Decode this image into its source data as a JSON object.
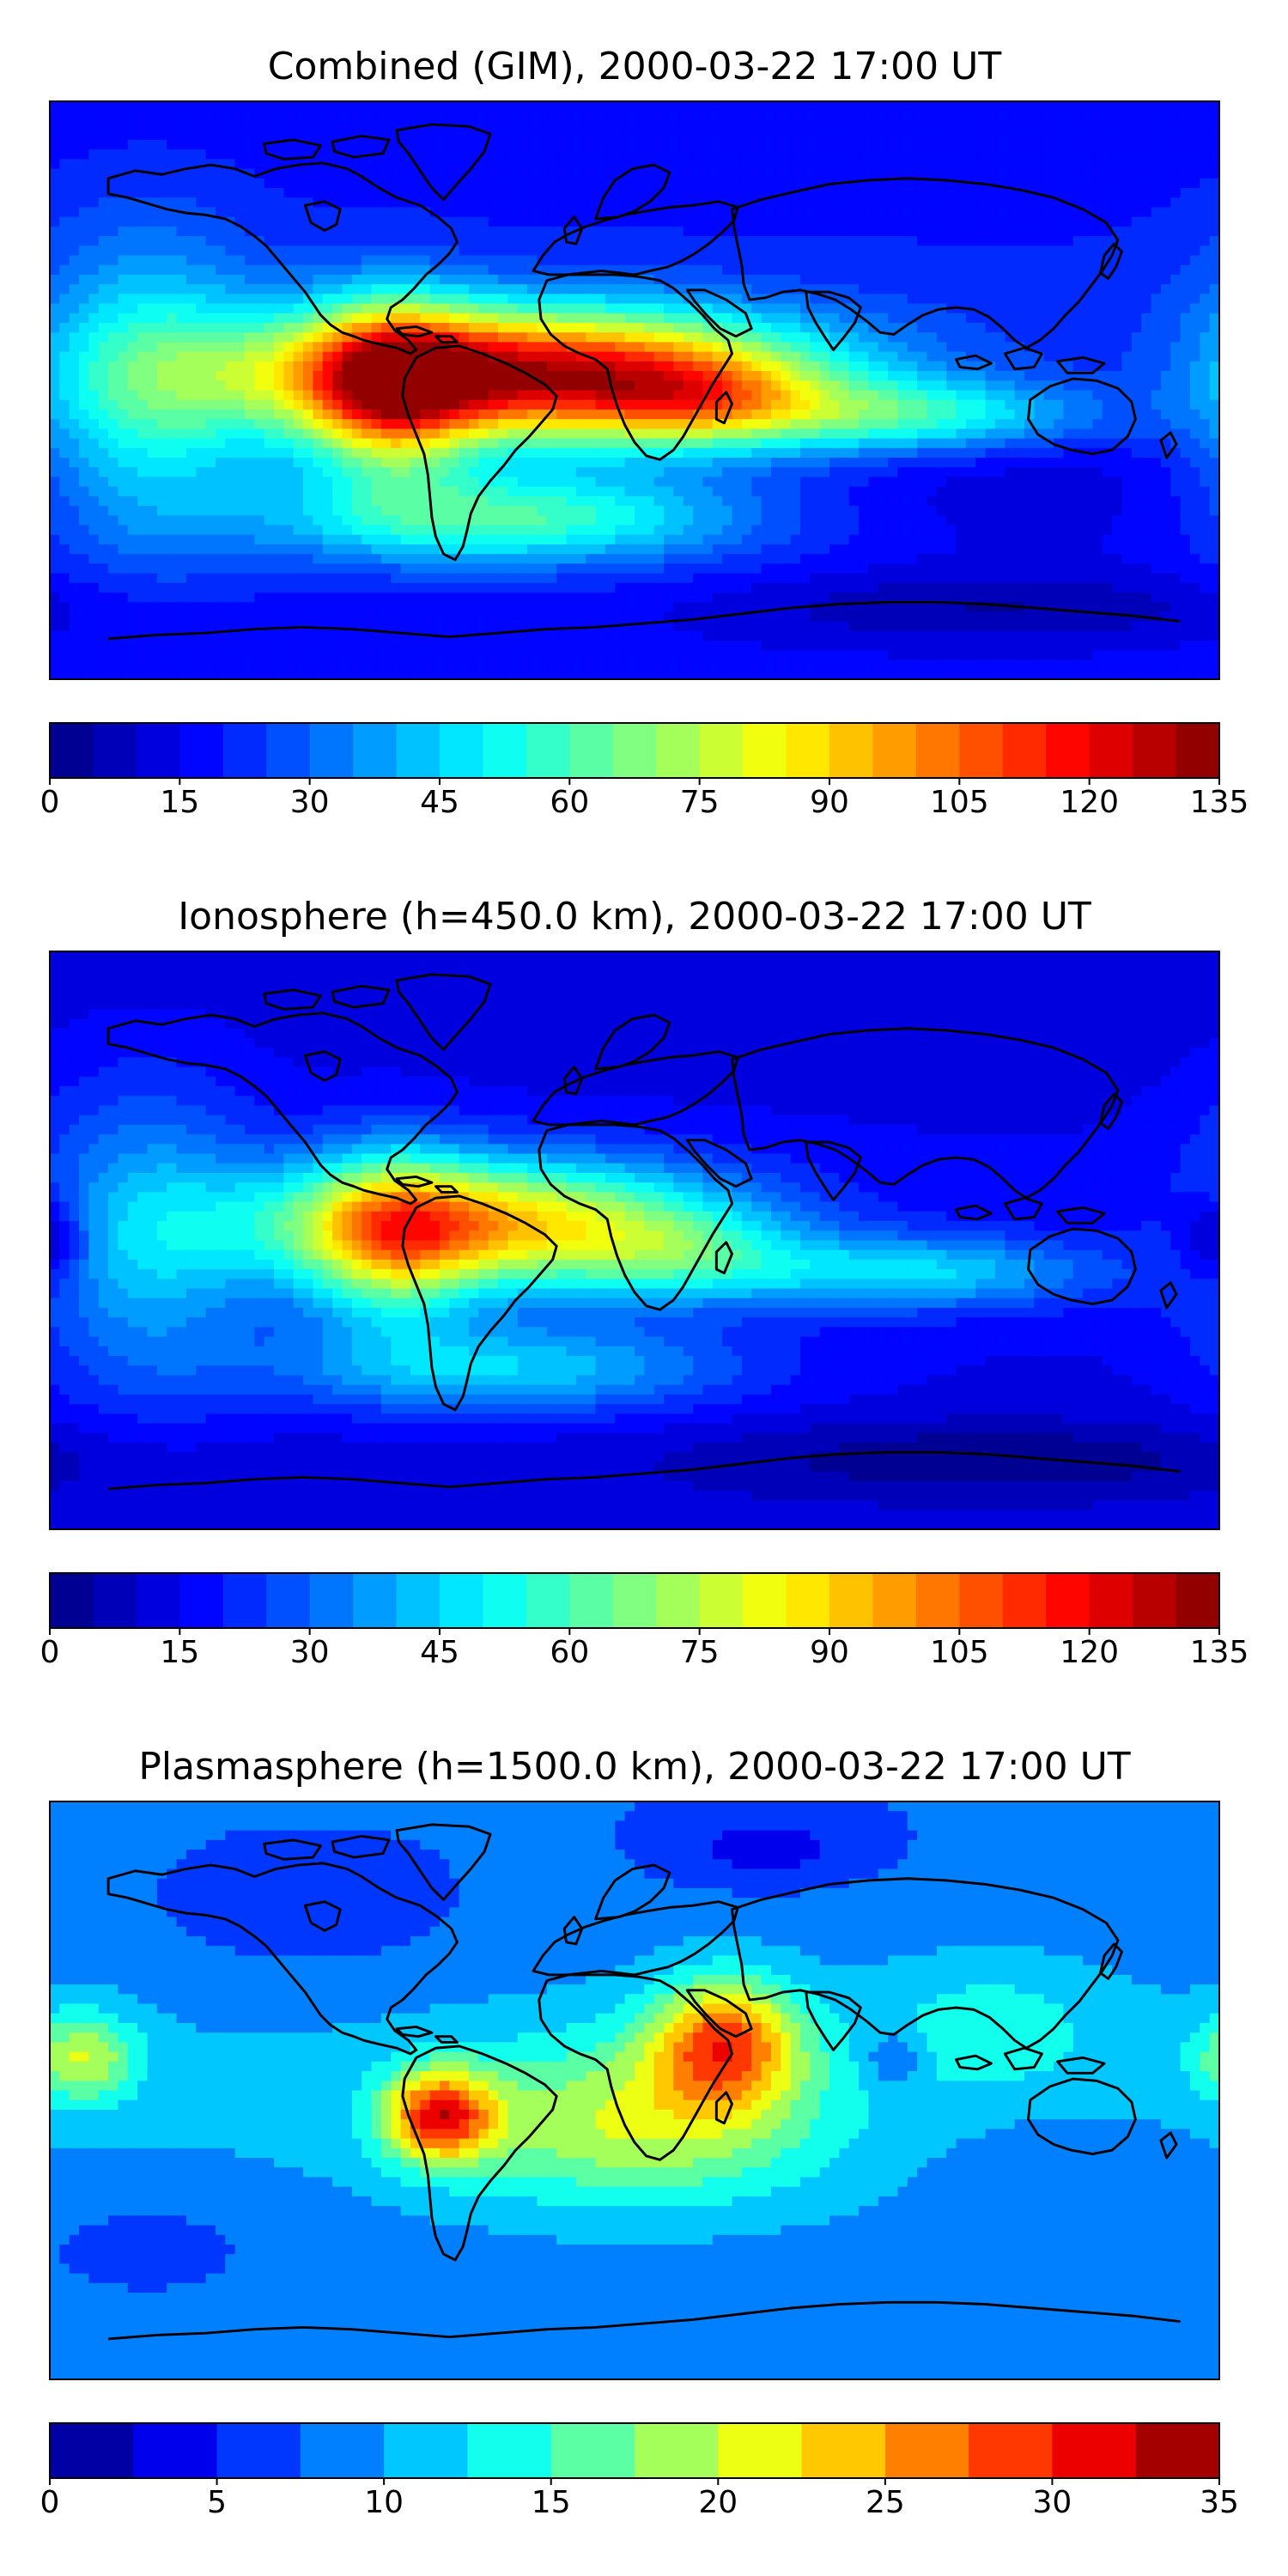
{
  "chart_data": [
    {
      "type": "heatmap",
      "title": "Combined (GIM), 2000-03-22 17:00 UT",
      "map": "world",
      "colormap": "jet",
      "colorbar": {
        "min": 0,
        "max": 135,
        "levels": 27,
        "ticks": [
          "0",
          "15",
          "30",
          "45",
          "60",
          "75",
          "90",
          "105",
          "120",
          "135"
        ]
      },
      "background_value": 20,
      "features": [
        {
          "lon": -35,
          "lat": 5,
          "amp": 105,
          "sx": 60,
          "sy": 14
        },
        {
          "lon": -75,
          "lat": 0,
          "amp": 55,
          "sx": 18,
          "sy": 20
        },
        {
          "lon": 20,
          "lat": -3,
          "amp": 30,
          "sx": 25,
          "sy": 10
        },
        {
          "lon": 85,
          "lat": -8,
          "amp": 35,
          "sx": 40,
          "sy": 8
        },
        {
          "lon": -150,
          "lat": 0,
          "amp": 30,
          "sx": 25,
          "sy": 35
        },
        {
          "lon": -40,
          "lat": -40,
          "amp": 40,
          "sx": 50,
          "sy": 10
        },
        {
          "lon": 120,
          "lat": -25,
          "amp": -10,
          "sx": 50,
          "sy": 20
        },
        {
          "lon": 110,
          "lat": -68,
          "amp": -12,
          "sx": 60,
          "sy": 8
        }
      ]
    },
    {
      "type": "heatmap",
      "title": "Ionosphere  (h=450.0 km), 2000-03-22 17:00 UT",
      "map": "world",
      "colormap": "jet",
      "colorbar": {
        "min": 0,
        "max": 135,
        "levels": 27,
        "ticks": [
          "0",
          "15",
          "30",
          "45",
          "60",
          "75",
          "90",
          "105",
          "120",
          "135"
        ]
      },
      "background_value": 14,
      "features": [
        {
          "lon": -45,
          "lat": 5,
          "amp": 75,
          "sx": 50,
          "sy": 14
        },
        {
          "lon": -75,
          "lat": 0,
          "amp": 40,
          "sx": 18,
          "sy": 20
        },
        {
          "lon": 15,
          "lat": -5,
          "amp": 20,
          "sx": 25,
          "sy": 10
        },
        {
          "lon": 85,
          "lat": -10,
          "amp": 30,
          "sx": 40,
          "sy": 8
        },
        {
          "lon": -150,
          "lat": 0,
          "amp": 25,
          "sx": 25,
          "sy": 35
        },
        {
          "lon": -40,
          "lat": -40,
          "amp": 30,
          "sx": 50,
          "sy": 10
        },
        {
          "lon": -178,
          "lat": 0,
          "amp": -10,
          "sx": 8,
          "sy": 10
        },
        {
          "lon": 178,
          "lat": 0,
          "amp": -10,
          "sx": 8,
          "sy": 10
        },
        {
          "lon": 110,
          "lat": -68,
          "amp": -12,
          "sx": 60,
          "sy": 8
        }
      ]
    },
    {
      "type": "heatmap",
      "title": "Plasmasphere (h=1500.0 km), 2000-03-22 17:00 UT",
      "map": "world",
      "colormap": "jet",
      "colorbar": {
        "min": 0,
        "max": 35,
        "levels": 14,
        "ticks": [
          "0",
          "5",
          "10",
          "15",
          "20",
          "25",
          "30",
          "35"
        ]
      },
      "background_value": 9,
      "features": [
        {
          "lon": -60,
          "lat": -8,
          "amp": 19,
          "sx": 12,
          "sy": 10
        },
        {
          "lon": 28,
          "lat": 15,
          "amp": 17,
          "sx": 16,
          "sy": 14
        },
        {
          "lon": 0,
          "lat": -10,
          "amp": 10,
          "sx": 40,
          "sy": 18
        },
        {
          "lon": -170,
          "lat": 10,
          "amp": 10,
          "sx": 12,
          "sy": 10
        },
        {
          "lon": 80,
          "lat": 10,
          "amp": -5,
          "sx": 6,
          "sy": 6
        },
        {
          "lon": 40,
          "lat": 75,
          "amp": -4,
          "sx": 20,
          "sy": 8
        },
        {
          "lon": -100,
          "lat": 50,
          "amp": -2,
          "sx": 40,
          "sy": 15
        },
        {
          "lon": -150,
          "lat": -45,
          "amp": -2,
          "sx": 30,
          "sy": 12
        },
        {
          "lon": 130,
          "lat": -25,
          "amp": -2,
          "sx": 25,
          "sy": 12
        },
        {
          "lon": 110,
          "lat": 20,
          "amp": 4,
          "sx": 25,
          "sy": 15
        }
      ]
    }
  ]
}
